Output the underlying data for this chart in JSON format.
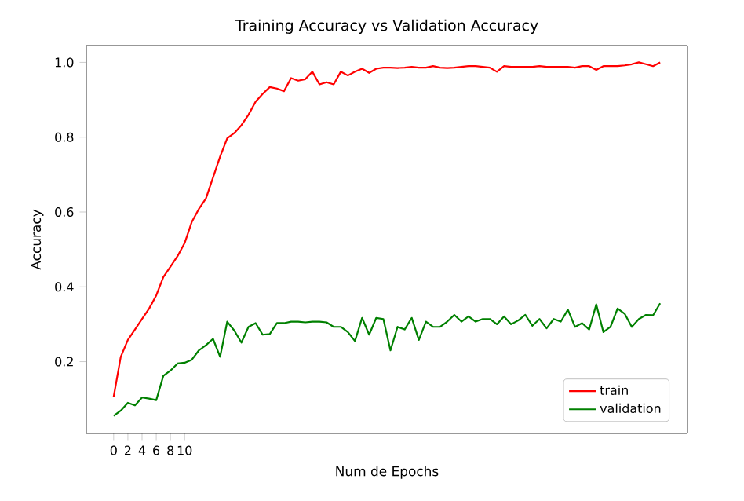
{
  "chart_data": {
    "type": "line",
    "title": "Training Accuracy vs Validation Accuracy",
    "xlabel": "Num de Epochs",
    "ylabel": "Accuracy",
    "x": [
      0,
      1,
      2,
      3,
      4,
      5,
      6,
      7,
      8,
      9,
      10,
      11,
      12,
      13,
      14,
      15,
      16,
      17,
      18,
      19,
      20,
      21,
      22,
      23,
      24,
      25,
      26,
      27,
      28,
      29,
      30,
      31,
      32,
      33,
      34,
      35,
      36,
      37,
      38,
      39,
      40,
      41,
      42,
      43,
      44,
      45,
      46,
      47,
      48,
      49,
      50,
      51,
      52,
      53,
      54,
      55,
      56,
      57,
      58,
      59,
      60,
      61,
      62,
      63,
      64,
      65,
      66,
      67,
      68,
      69,
      70,
      71,
      72,
      73,
      74,
      75,
      76,
      77
    ],
    "series": [
      {
        "name": "train",
        "color": "#ff0000",
        "values": [
          0.106,
          0.213,
          0.258,
          0.286,
          0.314,
          0.342,
          0.377,
          0.426,
          0.454,
          0.482,
          0.517,
          0.573,
          0.608,
          0.636,
          0.692,
          0.748,
          0.797,
          0.811,
          0.832,
          0.86,
          0.895,
          0.916,
          0.934,
          0.93,
          0.923,
          0.958,
          0.951,
          0.955,
          0.975,
          0.941,
          0.947,
          0.941,
          0.975,
          0.965,
          0.975,
          0.983,
          0.972,
          0.983,
          0.986,
          0.986,
          0.985,
          0.986,
          0.988,
          0.986,
          0.986,
          0.99,
          0.986,
          0.985,
          0.986,
          0.988,
          0.99,
          0.99,
          0.988,
          0.986,
          0.975,
          0.99,
          0.988,
          0.988,
          0.988,
          0.988,
          0.99,
          0.988,
          0.988,
          0.988,
          0.988,
          0.986,
          0.99,
          0.99,
          0.98,
          0.99,
          0.99,
          0.99,
          0.992,
          0.995,
          1.0,
          0.995,
          0.99,
          1.0
        ]
      },
      {
        "name": "validation",
        "color": "#008000",
        "values": [
          0.055,
          0.069,
          0.09,
          0.083,
          0.104,
          0.101,
          0.097,
          0.162,
          0.176,
          0.195,
          0.197,
          0.205,
          0.23,
          0.244,
          0.261,
          0.213,
          0.307,
          0.283,
          0.251,
          0.293,
          0.303,
          0.272,
          0.274,
          0.303,
          0.303,
          0.307,
          0.307,
          0.305,
          0.307,
          0.307,
          0.305,
          0.293,
          0.293,
          0.279,
          0.255,
          0.317,
          0.272,
          0.317,
          0.314,
          0.23,
          0.293,
          0.286,
          0.317,
          0.258,
          0.307,
          0.293,
          0.293,
          0.307,
          0.325,
          0.307,
          0.321,
          0.307,
          0.314,
          0.314,
          0.3,
          0.321,
          0.3,
          0.31,
          0.325,
          0.296,
          0.314,
          0.289,
          0.314,
          0.307,
          0.339,
          0.293,
          0.303,
          0.286,
          0.353,
          0.279,
          0.293,
          0.342,
          0.328,
          0.293,
          0.314,
          0.325,
          0.324,
          0.356
        ]
      }
    ],
    "xlim": [
      -3.85,
      80.85
    ],
    "ylim": [
      0.008,
      1.045
    ],
    "xticks": [
      0,
      2,
      4,
      6,
      8,
      10
    ],
    "yticks": [
      0.2,
      0.4,
      0.6,
      0.8,
      {
        "value": 1.0,
        "label": "1.0"
      }
    ],
    "grid": false,
    "legend": "bottom right",
    "marker": "none",
    "line_style": "solid"
  }
}
